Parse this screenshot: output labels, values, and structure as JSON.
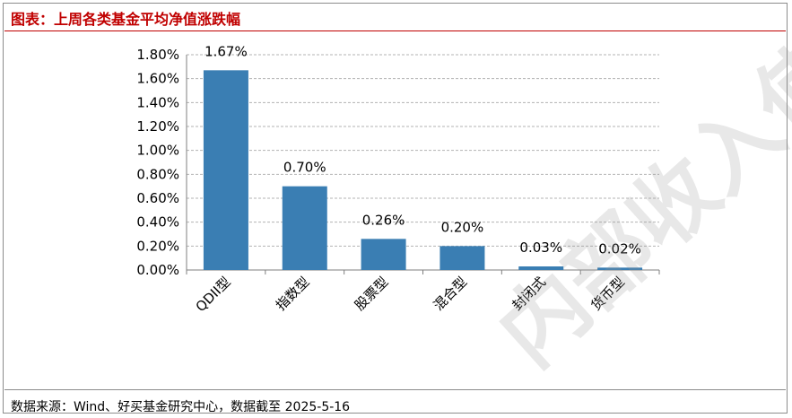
{
  "title": "图表：上周各类基金平均净值涨跌幅",
  "source": "数据来源：Wind、好买基金研究中心，数据截至 2025-5-16",
  "watermark": "内部收入使用",
  "colors": {
    "bar": "#3a7eb3",
    "title": "#c00000",
    "grid": "#b3b3b3"
  },
  "chart_data": {
    "type": "bar",
    "title": "",
    "xlabel": "",
    "ylabel": "",
    "categories": [
      "QDII型",
      "指数型",
      "股票型",
      "混合型",
      "封闭式",
      "货币型"
    ],
    "values": [
      1.67,
      0.7,
      0.26,
      0.2,
      0.03,
      0.02
    ],
    "data_labels": [
      "1.67%",
      "0.70%",
      "0.26%",
      "0.20%",
      "0.03%",
      "0.02%"
    ],
    "ylim": [
      0,
      1.8
    ],
    "yticks": [
      0,
      0.2,
      0.4,
      0.6,
      0.8,
      1.0,
      1.2,
      1.4,
      1.6,
      1.8
    ],
    "ytick_labels": [
      "0.00%",
      "0.20%",
      "0.40%",
      "0.60%",
      "0.80%",
      "1.00%",
      "1.20%",
      "1.40%",
      "1.60%",
      "1.80%"
    ],
    "grid": true,
    "grid_style": "dashed",
    "legend": "none"
  }
}
